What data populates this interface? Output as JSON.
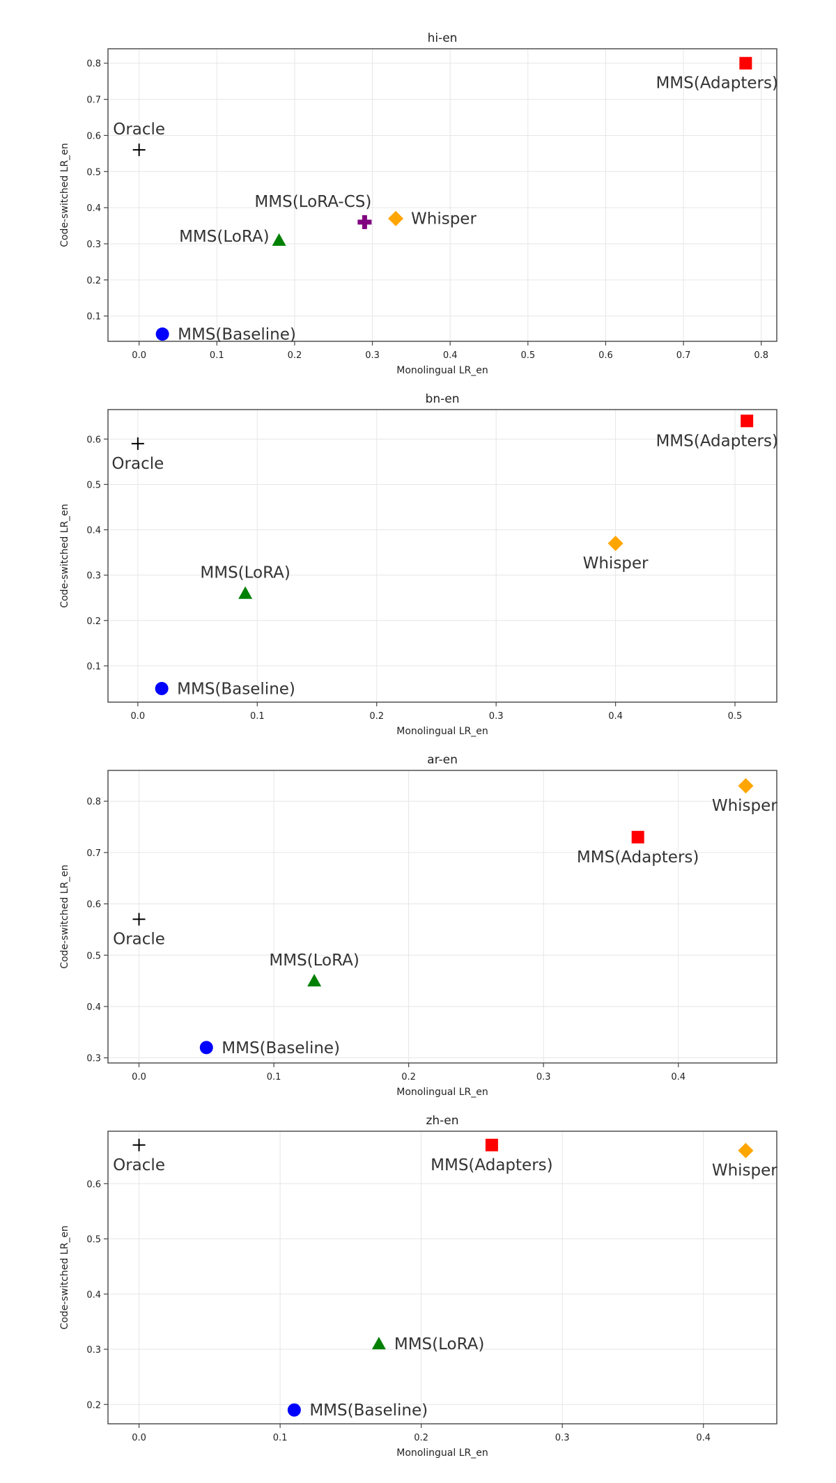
{
  "chart_data": [
    {
      "type": "scatter",
      "title": "hi-en",
      "xlabel": "Monolingual LR_en",
      "ylabel": "Code-switched LR_en",
      "xlim": [
        -0.04,
        0.82
      ],
      "ylim": [
        0.03,
        0.84
      ],
      "xticks": [
        "0.0",
        "0.1",
        "0.2",
        "0.3",
        "0.4",
        "0.5",
        "0.6",
        "0.7",
        "0.8"
      ],
      "yticks": [
        "0.1",
        "0.2",
        "0.3",
        "0.4",
        "0.5",
        "0.6",
        "0.7",
        "0.8"
      ],
      "grid": true,
      "points": [
        {
          "name": "MMS(Adapters)",
          "x": 0.78,
          "y": 0.8,
          "marker": "square",
          "color": "#ff0000",
          "label_pos": "below"
        },
        {
          "name": "Oracle",
          "x": 0.0,
          "y": 0.56,
          "marker": "plus",
          "color": "#000000",
          "label_pos": "above"
        },
        {
          "name": "MMS(LoRA-CS)",
          "x": 0.29,
          "y": 0.36,
          "marker": "plus-filled",
          "color": "#800080",
          "label_pos": "above-left"
        },
        {
          "name": "Whisper",
          "x": 0.33,
          "y": 0.37,
          "marker": "diamond",
          "color": "#ffa500",
          "label_pos": "right"
        },
        {
          "name": "MMS(LoRA)",
          "x": 0.18,
          "y": 0.31,
          "marker": "triangle",
          "color": "#008000",
          "label_pos": "left"
        },
        {
          "name": "MMS(Baseline)",
          "x": 0.03,
          "y": 0.05,
          "marker": "circle",
          "color": "#0000ff",
          "label_pos": "right"
        }
      ]
    },
    {
      "type": "scatter",
      "title": "bn-en",
      "xlabel": "Monolingual LR_en",
      "ylabel": "Code-switched LR_en",
      "xlim": [
        -0.025,
        0.535
      ],
      "ylim": [
        0.02,
        0.665
      ],
      "xticks": [
        "0.0",
        "0.1",
        "0.2",
        "0.3",
        "0.4",
        "0.5"
      ],
      "yticks": [
        "0.1",
        "0.2",
        "0.3",
        "0.4",
        "0.5",
        "0.6"
      ],
      "grid": true,
      "points": [
        {
          "name": "MMS(Adapters)",
          "x": 0.51,
          "y": 0.64,
          "marker": "square",
          "color": "#ff0000",
          "label_pos": "below"
        },
        {
          "name": "Oracle",
          "x": 0.0,
          "y": 0.59,
          "marker": "plus",
          "color": "#000000",
          "label_pos": "below"
        },
        {
          "name": "Whisper",
          "x": 0.4,
          "y": 0.37,
          "marker": "diamond",
          "color": "#ffa500",
          "label_pos": "below"
        },
        {
          "name": "MMS(LoRA)",
          "x": 0.09,
          "y": 0.26,
          "marker": "triangle",
          "color": "#008000",
          "label_pos": "above"
        },
        {
          "name": "MMS(Baseline)",
          "x": 0.02,
          "y": 0.05,
          "marker": "circle",
          "color": "#0000ff",
          "label_pos": "right"
        }
      ]
    },
    {
      "type": "scatter",
      "title": "ar-en",
      "xlabel": "Monolingual LR_en",
      "ylabel": "Code-switched LR_en",
      "xlim": [
        -0.023,
        0.473
      ],
      "ylim": [
        0.29,
        0.86
      ],
      "xticks": [
        "0.0",
        "0.1",
        "0.2",
        "0.3",
        "0.4"
      ],
      "yticks": [
        "0.3",
        "0.4",
        "0.5",
        "0.6",
        "0.7",
        "0.8"
      ],
      "grid": true,
      "points": [
        {
          "name": "Whisper",
          "x": 0.45,
          "y": 0.83,
          "marker": "diamond",
          "color": "#ffa500",
          "label_pos": "below"
        },
        {
          "name": "MMS(Adapters)",
          "x": 0.37,
          "y": 0.73,
          "marker": "square",
          "color": "#ff0000",
          "label_pos": "below"
        },
        {
          "name": "Oracle",
          "x": 0.0,
          "y": 0.57,
          "marker": "plus",
          "color": "#000000",
          "label_pos": "below"
        },
        {
          "name": "MMS(LoRA)",
          "x": 0.13,
          "y": 0.45,
          "marker": "triangle",
          "color": "#008000",
          "label_pos": "above"
        },
        {
          "name": "MMS(Baseline)",
          "x": 0.05,
          "y": 0.32,
          "marker": "circle",
          "color": "#0000ff",
          "label_pos": "right"
        }
      ]
    },
    {
      "type": "scatter",
      "title": "zh-en",
      "xlabel": "Monolingual LR_en",
      "ylabel": "Code-switched LR_en",
      "xlim": [
        -0.022,
        0.452
      ],
      "ylim": [
        0.165,
        0.695
      ],
      "xticks": [
        "0.0",
        "0.1",
        "0.2",
        "0.3",
        "0.4"
      ],
      "yticks": [
        "0.2",
        "0.3",
        "0.4",
        "0.5",
        "0.6"
      ],
      "grid": true,
      "points": [
        {
          "name": "Oracle",
          "x": 0.0,
          "y": 0.67,
          "marker": "plus",
          "color": "#000000",
          "label_pos": "below"
        },
        {
          "name": "MMS(Adapters)",
          "x": 0.25,
          "y": 0.67,
          "marker": "square",
          "color": "#ff0000",
          "label_pos": "below"
        },
        {
          "name": "Whisper",
          "x": 0.43,
          "y": 0.66,
          "marker": "diamond",
          "color": "#ffa500",
          "label_pos": "below"
        },
        {
          "name": "MMS(LoRA)",
          "x": 0.17,
          "y": 0.31,
          "marker": "triangle",
          "color": "#008000",
          "label_pos": "right"
        },
        {
          "name": "MMS(Baseline)",
          "x": 0.11,
          "y": 0.19,
          "marker": "circle",
          "color": "#0000ff",
          "label_pos": "right"
        }
      ]
    }
  ]
}
